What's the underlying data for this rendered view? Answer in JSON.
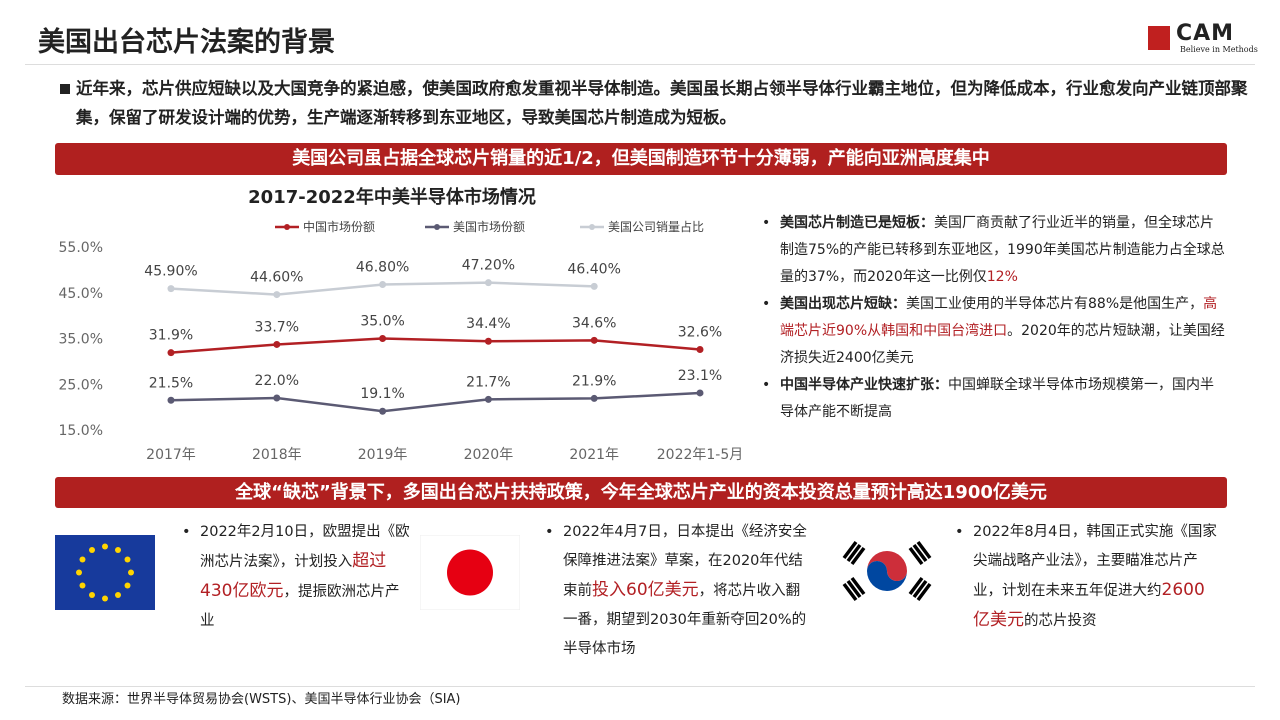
{
  "header": {
    "title": "美国出台芯片法案的背景",
    "logo": {
      "text": "CAM",
      "tagline": "Believe in Methods"
    }
  },
  "intro": "近年来，芯片供应短缺以及大国竞争的紧迫感，使美国政府愈发重视半导体制造。美国虽长期占领半导体行业霸主地位，但为降低成本，行业愈发向产业链顶部聚集，保留了研发设计端的优势，生产端逐渐转移到东亚地区，导致美国芯片制造成为短板。",
  "banner1": "美国公司虽占据全球芯片销量的近1/2，但美国制造环节十分薄弱，产能向亚洲高度集中",
  "chart_data": {
    "type": "line",
    "title": "2017-2022年中美半导体市场情况",
    "categories": [
      "2017年",
      "2018年",
      "2019年",
      "2020年",
      "2021年",
      "2022年1-5月"
    ],
    "series": [
      {
        "name": "中国市场份额",
        "color": "#b22024",
        "values": [
          31.9,
          33.7,
          35.0,
          34.4,
          34.6,
          32.6
        ],
        "value_labels": [
          "31.9%",
          "33.7%",
          "35.0%",
          "34.4%",
          "34.6%",
          "32.6%"
        ]
      },
      {
        "name": "美国市场份额",
        "color": "#5b5a73",
        "values": [
          21.5,
          22.0,
          19.1,
          21.7,
          21.9,
          23.1
        ],
        "value_labels": [
          "21.5%",
          "22.0%",
          "19.1%",
          "21.7%",
          "21.9%",
          "23.1%"
        ]
      },
      {
        "name": "美国公司销量占比",
        "color": "#c8cdd4",
        "values": [
          45.9,
          44.6,
          46.8,
          47.2,
          46.4,
          null
        ],
        "value_labels": [
          "45.90%",
          "44.60%",
          "46.80%",
          "47.20%",
          "46.40%",
          null
        ]
      }
    ],
    "ylim": [
      15,
      55
    ],
    "yticks": [
      {
        "value": 15,
        "label": "15.0%"
      },
      {
        "value": 25,
        "label": "25.0%"
      },
      {
        "value": 35,
        "label": "35.0%"
      },
      {
        "value": 45,
        "label": "45.0%"
      },
      {
        "value": 55,
        "label": "55.0%"
      }
    ],
    "grid": false,
    "legend": "top"
  },
  "right_bullets": [
    {
      "lead": "美国芯片制造已是短板：",
      "parts": [
        {
          "text": "美国厂商贡献了行业近半的销量，但全球芯片制造75%的产能已转移到东亚地区，1990年美国芯片制造能力占全球总量的37%，而2020年这一比例仅"
        },
        {
          "text": "12%",
          "highlight": true
        }
      ]
    },
    {
      "lead": "美国出现芯片短缺：",
      "parts": [
        {
          "text": "美国工业使用的半导体芯片有88%是他国生产，"
        },
        {
          "text": "高端芯片近90%从韩国和中国台湾进口",
          "highlight": true
        },
        {
          "text": "。2020年的芯片短缺潮，让美国经济损失近2400亿美元"
        }
      ]
    },
    {
      "lead": "中国半导体产业快速扩张：",
      "parts": [
        {
          "text": "中国蝉联全球半导体市场规模第一，国内半导体产能不断提高"
        }
      ]
    }
  ],
  "banner2": "全球“缺芯”背景下，多国出台芯片扶持政策，今年全球芯片产业的资本投资总量预计高达1900亿美元",
  "policies": [
    {
      "parts": [
        {
          "text": "2022年2月10日，欧盟提出《欧洲芯片法案》，计划投入"
        },
        {
          "text": "超过430亿欧元",
          "highlight": true
        },
        {
          "text": "，提振欧洲芯片产业"
        }
      ]
    },
    {
      "parts": [
        {
          "text": "2022年4月7日，日本提出《经济安全保障推进法案》草案，在2020年代结束前"
        },
        {
          "text": "投入60亿美元",
          "highlight": true
        },
        {
          "text": "，将芯片收入翻一番，期望到2030年重新夺回20%的半导体市场"
        }
      ]
    },
    {
      "parts": [
        {
          "text": "2022年8月4日，韩国正式实施《国家尖端战略产业法》，主要瞄准芯片产业，计划在未来五年促进大约"
        },
        {
          "text": "2600亿美元",
          "highlight": true
        },
        {
          "text": "的芯片投资"
        }
      ]
    }
  ],
  "source": "数据来源：世界半导体贸易协会(WSTS)、美国半导体行业协会（SIA)"
}
